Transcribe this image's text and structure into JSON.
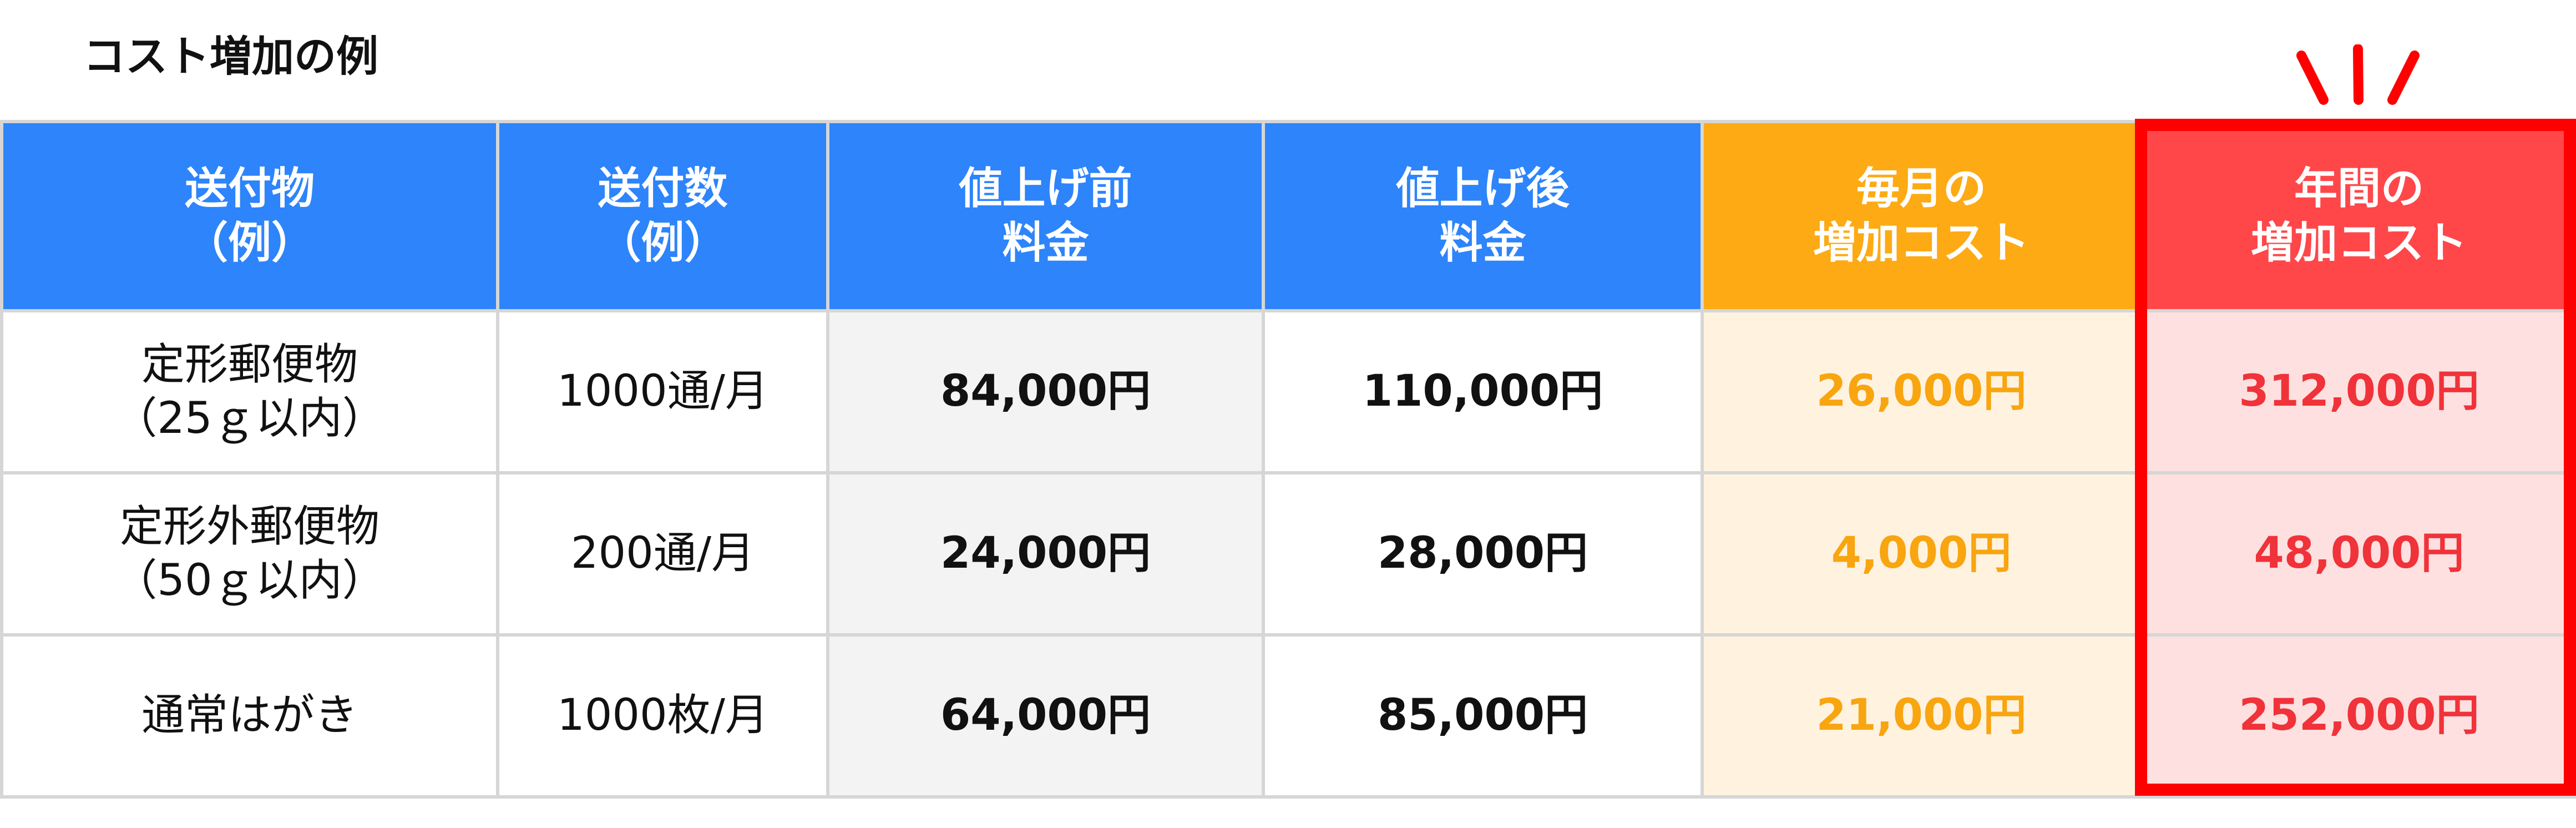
{
  "title": "コスト増加の例",
  "colors": {
    "header_blue": "#2d84fb",
    "header_orange": "#fdaa14",
    "header_red": "#ff474a",
    "highlight_border": "#ff0000",
    "monthly_text": "#f8a510",
    "annual_text": "#f0323a"
  },
  "table": {
    "headers": [
      "送付物\n（例）",
      "送付数\n（例）",
      "値上げ前\n料金",
      "値上げ後\n料金",
      "毎月の\n増加コスト",
      "年間の\n増加コスト"
    ],
    "rows": [
      [
        "定形郵便物\n（25ｇ以内）",
        "1000通/月",
        "84,000円",
        "110,000円",
        "26,000円",
        "312,000円"
      ],
      [
        "定形外郵便物\n（50ｇ以内）",
        "200通/月",
        "24,000円",
        "28,000円",
        "4,000円",
        "48,000円"
      ],
      [
        "通常はがき",
        "1000枚/月",
        "64,000円",
        "85,000円",
        "21,000円",
        "252,000円"
      ]
    ]
  }
}
